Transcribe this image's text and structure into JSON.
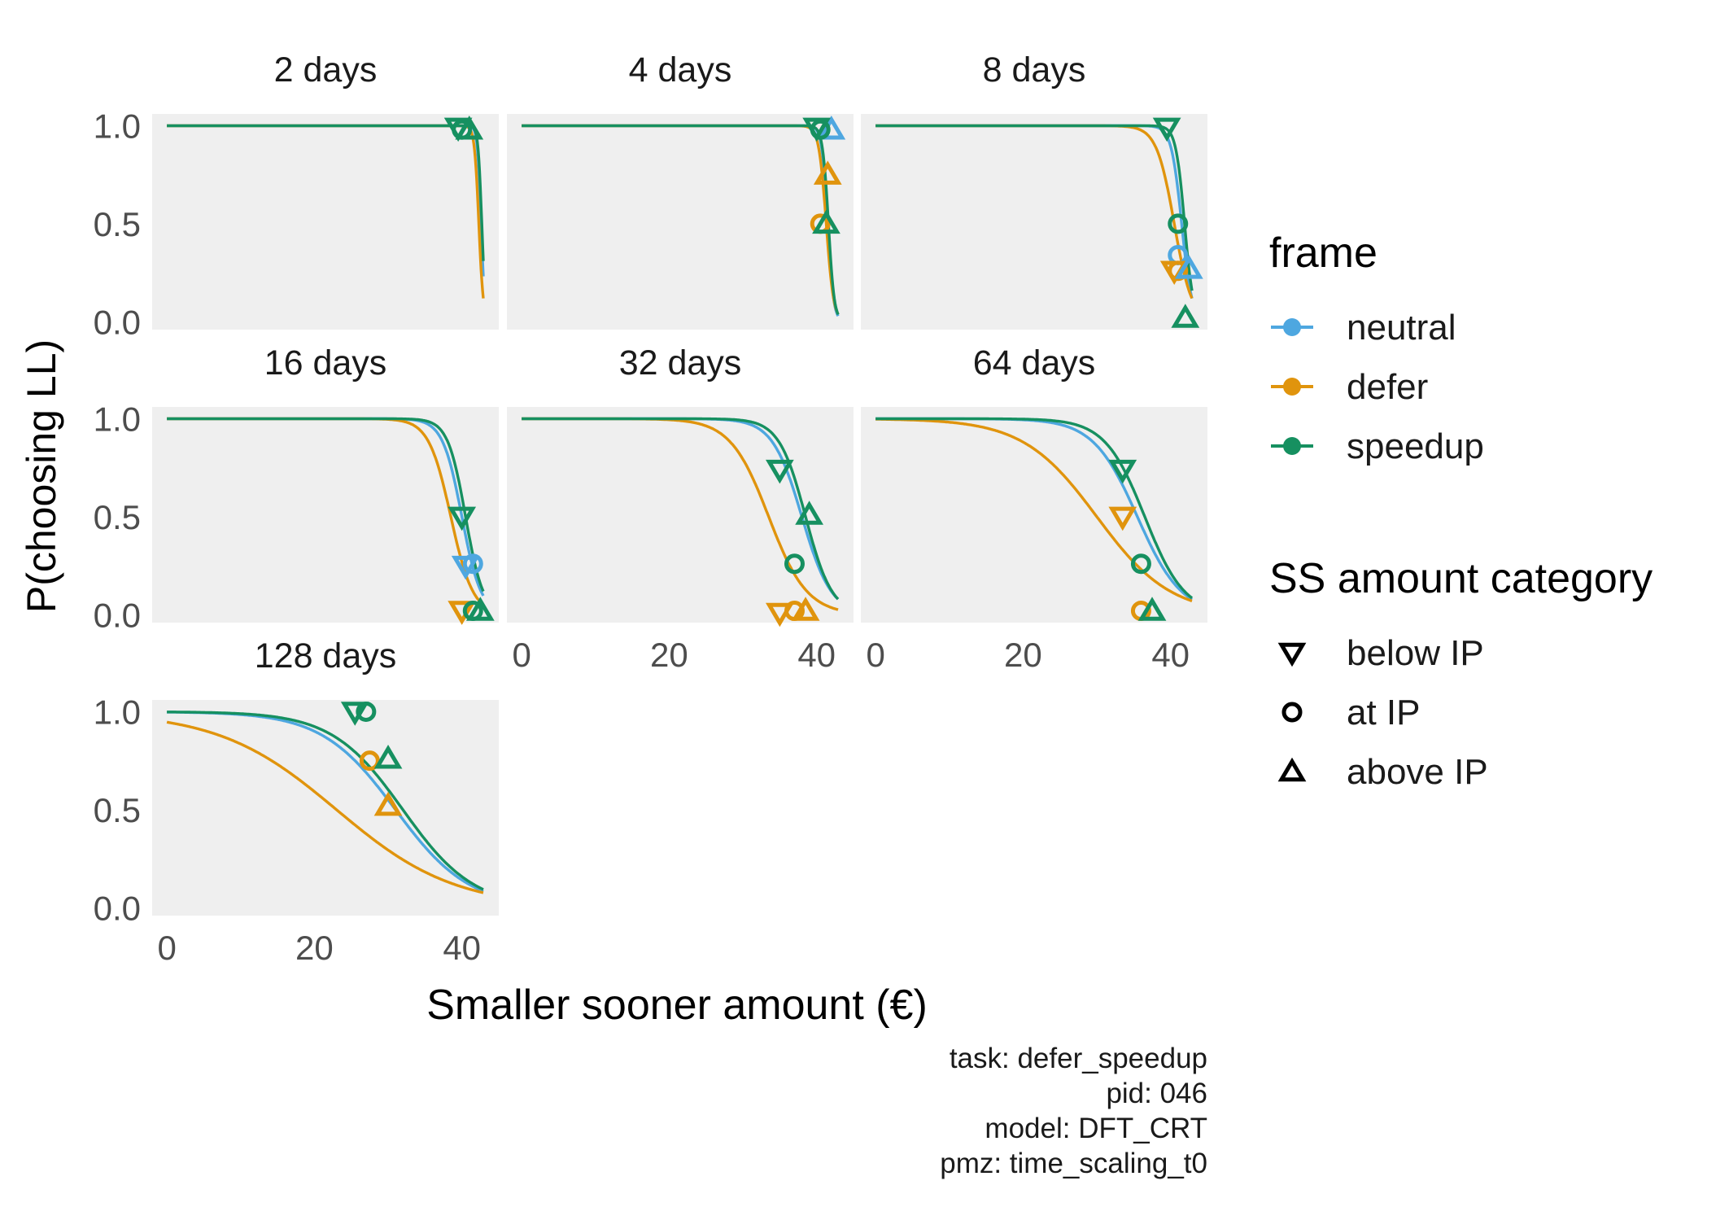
{
  "chart_data": {
    "type": "line",
    "ylabel": "P(choosing LL)",
    "xlabel": "Smaller sooner amount (€)",
    "xlim": [
      -2,
      45
    ],
    "ylim": [
      -0.04,
      1.06
    ],
    "x_ticks": [
      0,
      20,
      40
    ],
    "x_tick_labels": [
      "0",
      "20",
      "40"
    ],
    "y_ticks": [
      0,
      0.5,
      1
    ],
    "y_tick_labels": [
      "0.0",
      "0.5",
      "1.0"
    ],
    "grid": false,
    "legend_position": "right",
    "colors": {
      "neutral": "#4ea7e0",
      "defer": "#e0940d",
      "speedup": "#169060"
    },
    "legend": {
      "frame_title": "frame",
      "frame_items": [
        {
          "key": "neutral",
          "label": "neutral"
        },
        {
          "key": "defer",
          "label": "defer"
        },
        {
          "key": "speedup",
          "label": "speedup"
        }
      ],
      "shape_title": "SS amount category",
      "shape_items": [
        {
          "key": "below",
          "label": "below IP"
        },
        {
          "key": "at",
          "label": "at IP"
        },
        {
          "key": "above",
          "label": "above IP"
        }
      ]
    },
    "panels": [
      {
        "title": "2 days",
        "curves": {
          "neutral": {
            "mid": 42.6,
            "scale": 0.25
          },
          "defer": {
            "mid": 42.3,
            "scale": 0.3
          },
          "speedup": {
            "mid": 42.7,
            "scale": 0.25
          }
        },
        "points": [
          {
            "frame": "speedup",
            "shape": "below",
            "x": 39.5,
            "y": 0.99
          },
          {
            "frame": "speedup",
            "shape": "at",
            "x": 40.0,
            "y": 0.98
          },
          {
            "frame": "speedup",
            "shape": "above",
            "x": 41.0,
            "y": 0.98
          }
        ]
      },
      {
        "title": "4 days",
        "curves": {
          "neutral": {
            "mid": 41.5,
            "scale": 0.4
          },
          "defer": {
            "mid": 41.3,
            "scale": 0.5
          },
          "speedup": {
            "mid": 41.6,
            "scale": 0.4
          }
        },
        "points": [
          {
            "frame": "neutral",
            "shape": "above",
            "x": 42.0,
            "y": 0.98
          },
          {
            "frame": "speedup",
            "shape": "below",
            "x": 40.0,
            "y": 0.99
          },
          {
            "frame": "speedup",
            "shape": "at",
            "x": 40.5,
            "y": 0.98
          },
          {
            "frame": "defer",
            "shape": "above",
            "x": 41.5,
            "y": 0.75
          },
          {
            "frame": "defer",
            "shape": "at",
            "x": 40.5,
            "y": 0.5
          },
          {
            "frame": "speedup",
            "shape": "above",
            "x": 41.3,
            "y": 0.5
          }
        ]
      },
      {
        "title": "8 days",
        "curves": {
          "neutral": {
            "mid": 41.5,
            "scale": 0.7
          },
          "defer": {
            "mid": 40.5,
            "scale": 1.2
          },
          "speedup": {
            "mid": 41.9,
            "scale": 0.6
          }
        },
        "points": [
          {
            "frame": "speedup",
            "shape": "below",
            "x": 39.5,
            "y": 0.99
          },
          {
            "frame": "speedup",
            "shape": "at",
            "x": 41.0,
            "y": 0.5
          },
          {
            "frame": "neutral",
            "shape": "at",
            "x": 41.0,
            "y": 0.34
          },
          {
            "frame": "defer",
            "shape": "below",
            "x": 40.5,
            "y": 0.26
          },
          {
            "frame": "defer",
            "shape": "at",
            "x": 41.0,
            "y": 0.26
          },
          {
            "frame": "neutral",
            "shape": "above",
            "x": 42.5,
            "y": 0.27
          },
          {
            "frame": "speedup",
            "shape": "above",
            "x": 42.0,
            "y": 0.02
          }
        ]
      },
      {
        "title": "16 days",
        "curves": {
          "neutral": {
            "mid": 40.0,
            "scale": 1.3
          },
          "defer": {
            "mid": 38.5,
            "scale": 1.5
          },
          "speedup": {
            "mid": 40.5,
            "scale": 1.2
          }
        },
        "points": [
          {
            "frame": "speedup",
            "shape": "below",
            "x": 40.0,
            "y": 0.5
          },
          {
            "frame": "neutral",
            "shape": "below",
            "x": 40.5,
            "y": 0.25
          },
          {
            "frame": "neutral",
            "shape": "at",
            "x": 41.5,
            "y": 0.26
          },
          {
            "frame": "defer",
            "shape": "below",
            "x": 40.0,
            "y": 0.02
          },
          {
            "frame": "speedup",
            "shape": "at",
            "x": 41.5,
            "y": 0.02
          },
          {
            "frame": "speedup",
            "shape": "above",
            "x": 42.5,
            "y": 0.02
          }
        ]
      },
      {
        "title": "32 days",
        "curves": {
          "neutral": {
            "mid": 38.0,
            "scale": 2.0
          },
          "defer": {
            "mid": 33.5,
            "scale": 2.6
          },
          "speedup": {
            "mid": 38.5,
            "scale": 1.8
          }
        },
        "points": [
          {
            "frame": "speedup",
            "shape": "below",
            "x": 35.0,
            "y": 0.74
          },
          {
            "frame": "speedup",
            "shape": "above",
            "x": 39.0,
            "y": 0.51
          },
          {
            "frame": "speedup",
            "shape": "at",
            "x": 37.0,
            "y": 0.26
          },
          {
            "frame": "defer",
            "shape": "below",
            "x": 35.0,
            "y": 0.01
          },
          {
            "frame": "defer",
            "shape": "at",
            "x": 37.0,
            "y": 0.02
          },
          {
            "frame": "defer",
            "shape": "above",
            "x": 38.5,
            "y": 0.02
          }
        ]
      },
      {
        "title": "64 days",
        "curves": {
          "neutral": {
            "mid": 35.5,
            "scale": 3.0
          },
          "defer": {
            "mid": 30.0,
            "scale": 5.0
          },
          "speedup": {
            "mid": 36.5,
            "scale": 2.7
          }
        },
        "points": [
          {
            "frame": "speedup",
            "shape": "below",
            "x": 33.5,
            "y": 0.74
          },
          {
            "frame": "defer",
            "shape": "below",
            "x": 33.5,
            "y": 0.5
          },
          {
            "frame": "speedup",
            "shape": "at",
            "x": 36.0,
            "y": 0.26
          },
          {
            "frame": "defer",
            "shape": "at",
            "x": 36.0,
            "y": 0.02
          },
          {
            "frame": "speedup",
            "shape": "above",
            "x": 37.5,
            "y": 0.02
          }
        ]
      },
      {
        "title": "128 days",
        "curves": {
          "neutral": {
            "mid": 31.0,
            "scale": 5.0
          },
          "defer": {
            "mid": 23.0,
            "scale": 8.0
          },
          "speedup": {
            "mid": 32.0,
            "scale": 4.8
          }
        },
        "points": [
          {
            "frame": "speedup",
            "shape": "below",
            "x": 25.5,
            "y": 1.0
          },
          {
            "frame": "speedup",
            "shape": "at",
            "x": 27.0,
            "y": 1.0
          },
          {
            "frame": "defer",
            "shape": "at",
            "x": 27.5,
            "y": 0.75
          },
          {
            "frame": "speedup",
            "shape": "above",
            "x": 30.0,
            "y": 0.76
          },
          {
            "frame": "defer",
            "shape": "above",
            "x": 30.0,
            "y": 0.52
          }
        ]
      }
    ],
    "caption": [
      "task: defer_speedup",
      "pid: 046",
      "model: DFT_CRT",
      "pmz: time_scaling_t0"
    ]
  }
}
